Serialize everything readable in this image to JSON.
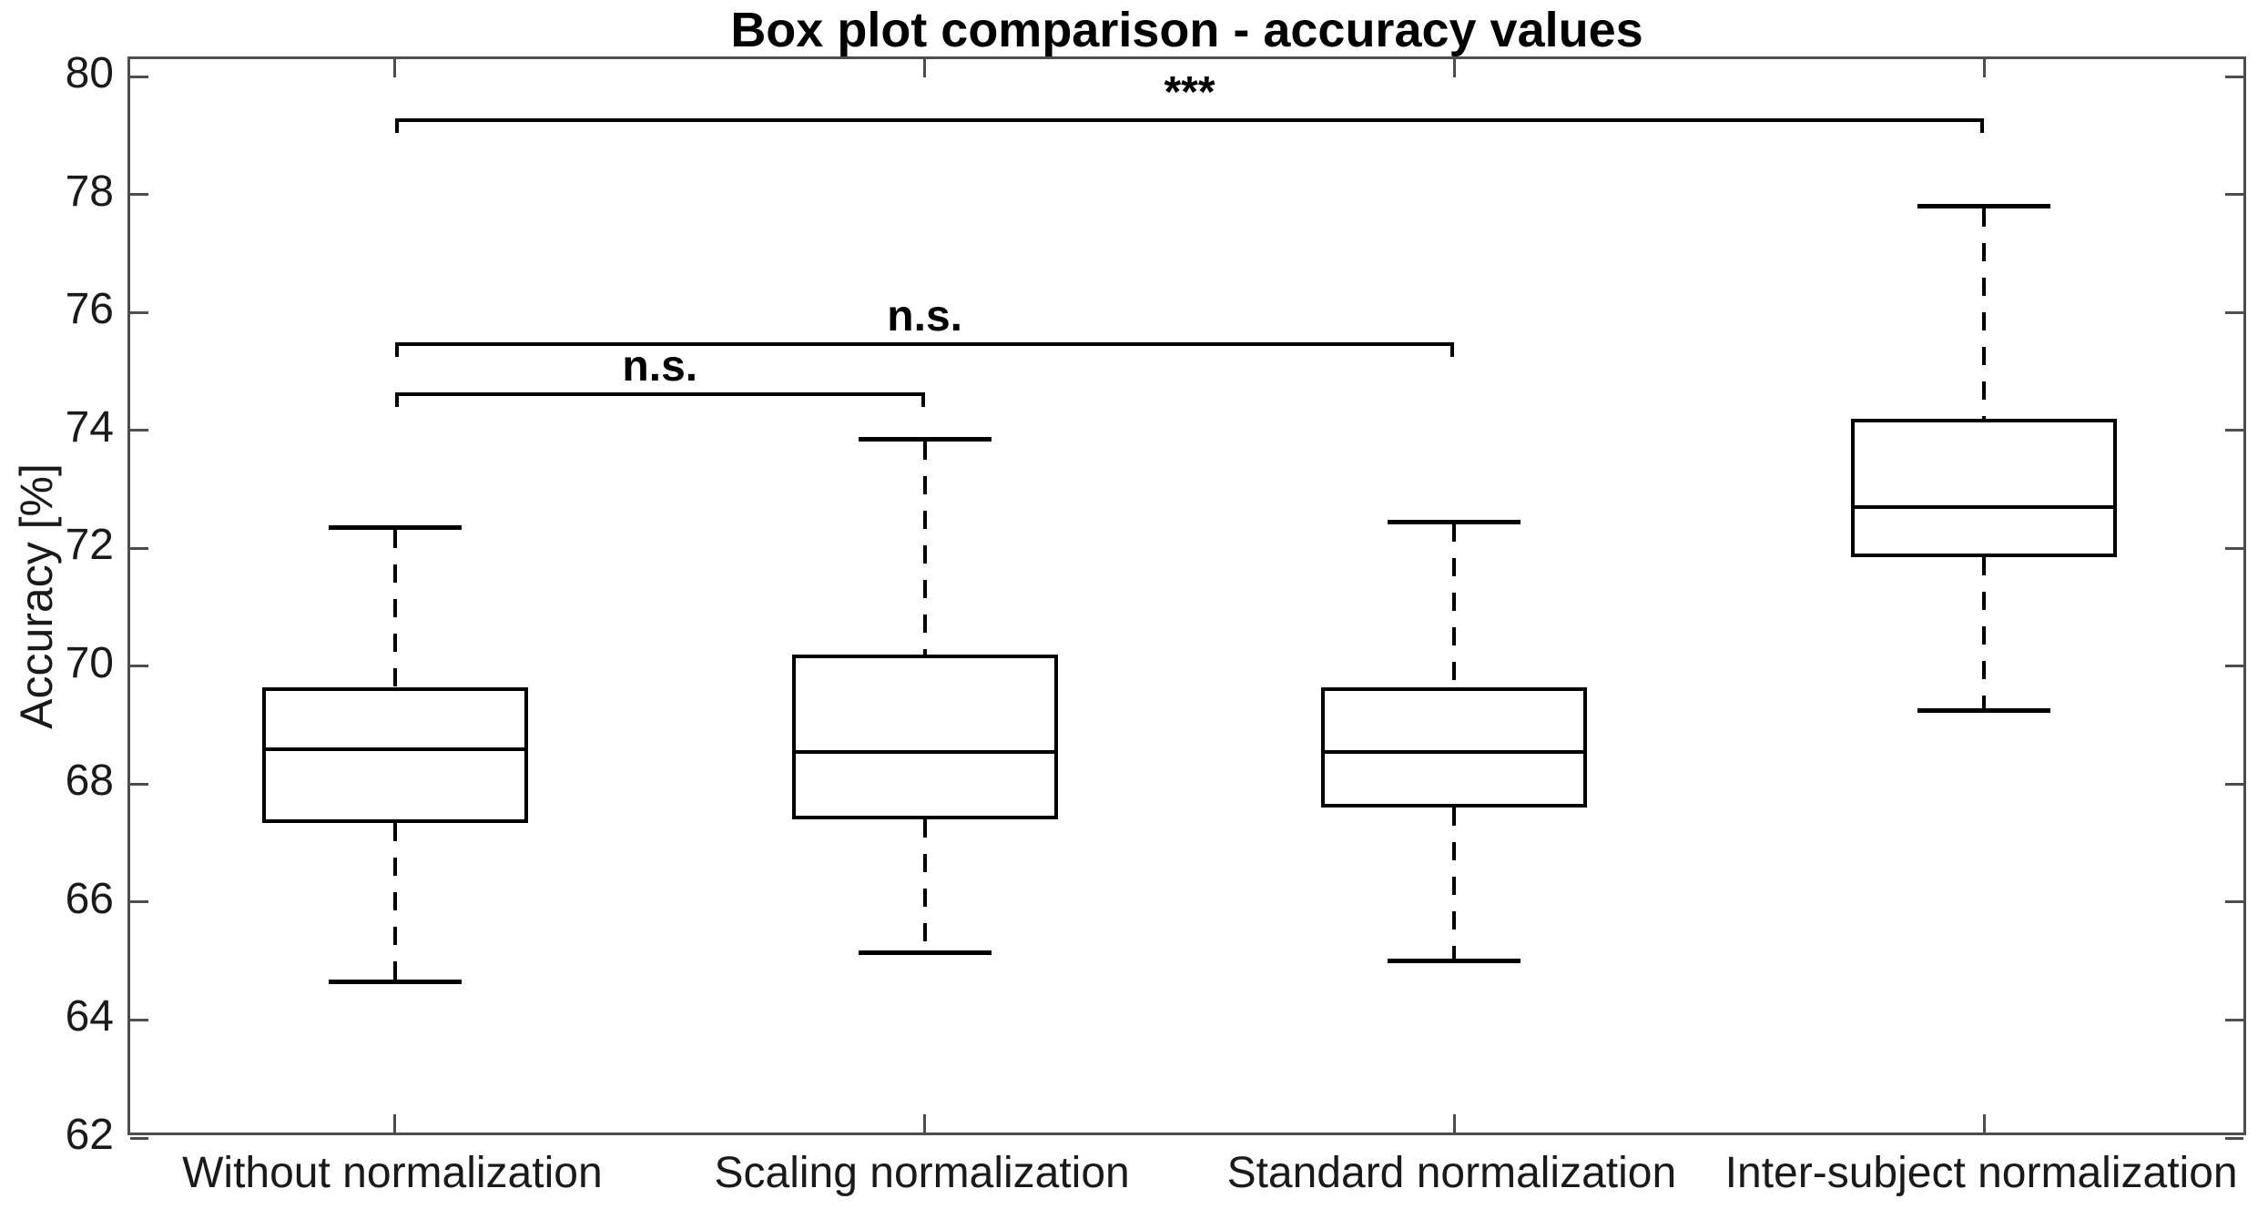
{
  "title": "Box plot comparison - accuracy values",
  "y_axis": {
    "label": "Accuracy [%]",
    "ticks": [
      62,
      64,
      66,
      68,
      70,
      72,
      74,
      76,
      78,
      80
    ]
  },
  "x_axis": {
    "categories": [
      "Without normalization",
      "Scaling normalization",
      "Standard normalization",
      "Inter-subject normalization"
    ]
  },
  "colors": {
    "box_stroke": "#000000",
    "axis": "#4d4d4d",
    "text": "#1a1a1a",
    "background": "#ffffff"
  },
  "chart_data": {
    "type": "boxplot",
    "title": "Box plot comparison - accuracy values",
    "xlabel": "",
    "ylabel": "Accuracy [%]",
    "ylim": [
      62,
      80.3
    ],
    "yticks": [
      62,
      64,
      66,
      68,
      70,
      72,
      74,
      76,
      78,
      80
    ],
    "grid": false,
    "categories": [
      "Without normalization",
      "Scaling normalization",
      "Standard normalization",
      "Inter-subject normalization"
    ],
    "boxes": [
      {
        "category": "Without normalization",
        "whisker_low": 64.65,
        "q1": 67.35,
        "median": 68.6,
        "q3": 69.65,
        "whisker_high": 72.35
      },
      {
        "category": "Scaling normalization",
        "whisker_low": 65.15,
        "q1": 67.4,
        "median": 68.55,
        "q3": 70.2,
        "whisker_high": 73.85
      },
      {
        "category": "Standard normalization",
        "whisker_low": 65.0,
        "q1": 67.6,
        "median": 68.55,
        "q3": 69.65,
        "whisker_high": 72.45
      },
      {
        "category": "Inter-subject normalization",
        "whisker_low": 69.25,
        "q1": 71.85,
        "median": 72.7,
        "q3": 74.2,
        "whisker_high": 77.8
      }
    ],
    "significance_annotations": [
      {
        "from": 0,
        "to": 1,
        "label": "n.s.",
        "y": 74.65
      },
      {
        "from": 0,
        "to": 2,
        "label": "n.s.",
        "y": 75.5
      },
      {
        "from": 0,
        "to": 3,
        "label": "***",
        "y": 79.3
      }
    ]
  }
}
